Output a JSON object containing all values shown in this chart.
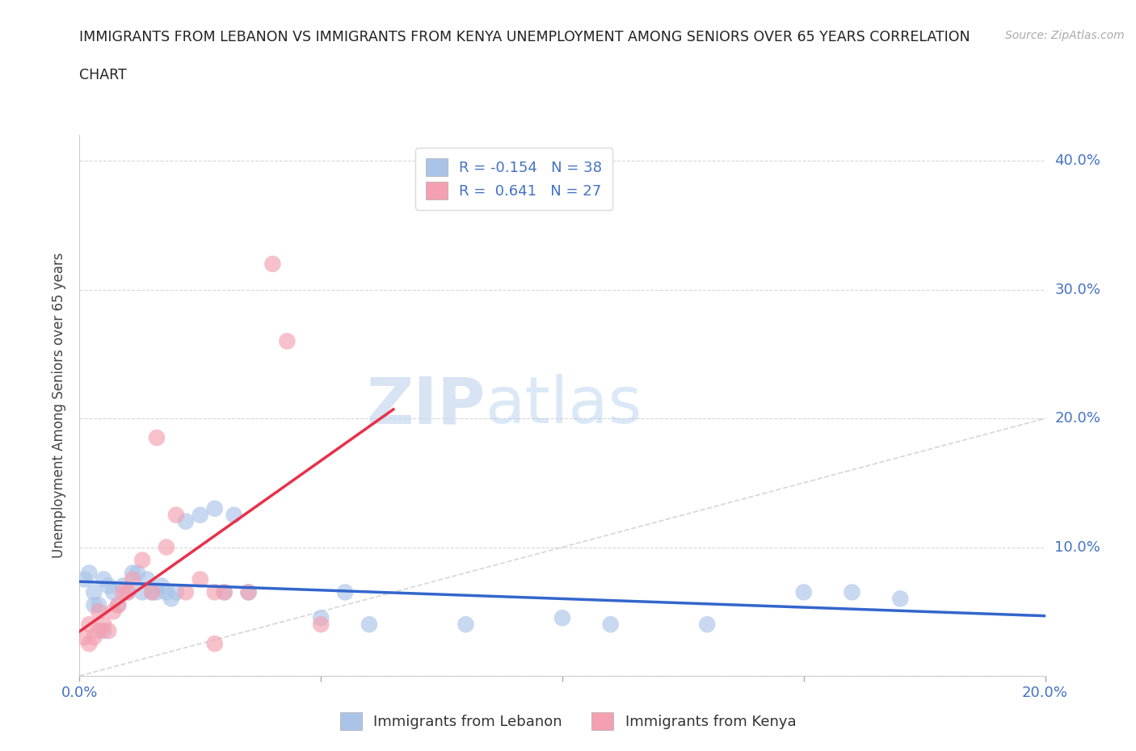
{
  "title_line1": "IMMIGRANTS FROM LEBANON VS IMMIGRANTS FROM KENYA UNEMPLOYMENT AMONG SENIORS OVER 65 YEARS CORRELATION",
  "title_line2": "CHART",
  "source": "Source: ZipAtlas.com",
  "ylabel": "Unemployment Among Seniors over 65 years",
  "xlim": [
    0.0,
    0.2
  ],
  "ylim": [
    0.0,
    0.42
  ],
  "x_ticks": [
    0.0,
    0.05,
    0.1,
    0.15,
    0.2
  ],
  "y_ticks": [
    0.0,
    0.1,
    0.2,
    0.3,
    0.4
  ],
  "background_color": "#ffffff",
  "grid_color": "#cccccc",
  "watermark_zip": "ZIP",
  "watermark_atlas": "atlas",
  "diagonal_line_color": "#cccccc",
  "lebanon_color": "#aac4e8",
  "kenya_color": "#f4a0b0",
  "lebanon_line_color": "#3366cc",
  "kenya_line_color": "#e8304a",
  "lebanon_R": -0.154,
  "lebanon_N": 38,
  "kenya_R": 0.641,
  "kenya_N": 27,
  "legend_label_lebanon": "Immigrants from Lebanon",
  "legend_label_kenya": "Immigrants from Kenya",
  "lebanon_x": [
    0.001,
    0.002,
    0.003,
    0.003,
    0.004,
    0.005,
    0.005,
    0.006,
    0.007,
    0.008,
    0.009,
    0.01,
    0.011,
    0.012,
    0.013,
    0.014,
    0.015,
    0.016,
    0.017,
    0.018,
    0.019,
    0.02,
    0.022,
    0.025,
    0.028,
    0.03,
    0.032,
    0.035,
    0.055,
    0.06,
    0.08,
    0.1,
    0.13,
    0.16,
    0.17,
    0.15,
    0.11,
    0.05
  ],
  "lebanon_y": [
    0.075,
    0.08,
    0.065,
    0.055,
    0.055,
    0.075,
    0.035,
    0.07,
    0.065,
    0.055,
    0.07,
    0.065,
    0.08,
    0.08,
    0.065,
    0.075,
    0.065,
    0.065,
    0.07,
    0.065,
    0.06,
    0.065,
    0.12,
    0.125,
    0.13,
    0.065,
    0.125,
    0.065,
    0.065,
    0.04,
    0.04,
    0.045,
    0.04,
    0.065,
    0.06,
    0.065,
    0.04,
    0.045
  ],
  "kenya_x": [
    0.001,
    0.002,
    0.002,
    0.003,
    0.004,
    0.004,
    0.005,
    0.006,
    0.007,
    0.008,
    0.009,
    0.01,
    0.011,
    0.013,
    0.015,
    0.016,
    0.018,
    0.02,
    0.022,
    0.025,
    0.028,
    0.03,
    0.035,
    0.04,
    0.043,
    0.05,
    0.028
  ],
  "kenya_y": [
    0.03,
    0.04,
    0.025,
    0.03,
    0.035,
    0.05,
    0.04,
    0.035,
    0.05,
    0.055,
    0.065,
    0.065,
    0.075,
    0.09,
    0.065,
    0.185,
    0.1,
    0.125,
    0.065,
    0.075,
    0.065,
    0.065,
    0.065,
    0.32,
    0.26,
    0.04,
    0.025
  ]
}
